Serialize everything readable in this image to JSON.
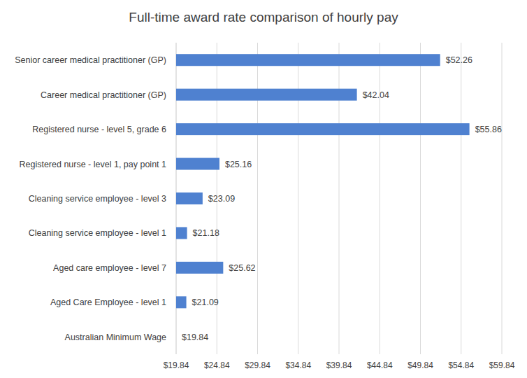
{
  "chart_data": {
    "type": "bar",
    "orientation": "horizontal",
    "title": "Full-time award rate comparison of hourly pay",
    "categories": [
      "Senior career medical practitioner (GP)",
      "Career medical practitioner (GP)",
      "Registered nurse - level 5, grade 6",
      "Registered nurse - level 1, pay point 1",
      "Cleaning service employee - level 3",
      "Cleaning service employee - level 1",
      "Aged care employee - level 7",
      "Aged Care Employee - level 1",
      "Australian Minimum Wage"
    ],
    "values": [
      52.26,
      42.04,
      55.86,
      25.16,
      23.09,
      21.18,
      25.62,
      21.09,
      19.84
    ],
    "value_labels": [
      "$52.26",
      "$42.04",
      "$55.86",
      "$25.16",
      "$23.09",
      "$21.18",
      "$25.62",
      "$21.09",
      "$19.84"
    ],
    "color": "#4f81d0",
    "xlim": [
      19.84,
      59.84
    ],
    "xticks": [
      {
        "value": 19.84,
        "label": "$19.84"
      },
      {
        "value": 24.84,
        "label": "$24.84"
      },
      {
        "value": 29.84,
        "label": "$29.84"
      },
      {
        "value": 34.84,
        "label": "$34.84"
      },
      {
        "value": 39.84,
        "label": "$39.84"
      },
      {
        "value": 44.84,
        "label": "$44.84"
      },
      {
        "value": 49.84,
        "label": "$49.84"
      },
      {
        "value": 54.84,
        "label": "$54.84"
      },
      {
        "value": 59.84,
        "label": "$59.84"
      }
    ],
    "grid": true,
    "data_labels": true
  }
}
